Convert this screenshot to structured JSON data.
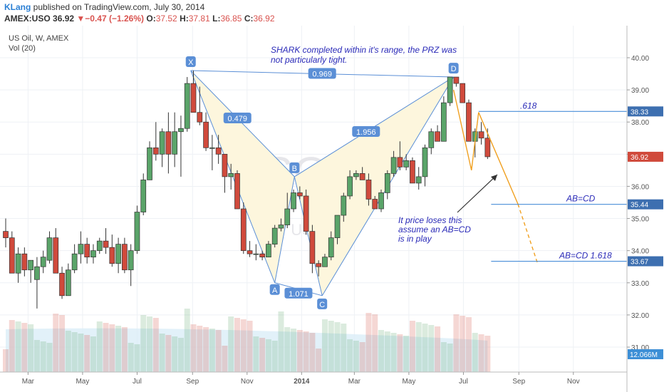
{
  "header": {
    "user": "KLang",
    "published": " published on TradingView.com, July 30, 2014",
    "symbol": "AMEX:USO",
    "last": "36.92",
    "change": "−0.47 (−1.26%)",
    "o_label": "O:",
    "o": "37.52",
    "h_label": "H:",
    "h": "37.81",
    "l_label": "L:",
    "l": "36.85",
    "c_label": "C:",
    "c": "36.92"
  },
  "legend": {
    "series": "US Oil, W, AMEX",
    "volume": "Vol (20)"
  },
  "watermark": {
    "big": "USO, W",
    "small": "US Oil"
  },
  "colors": {
    "up": "#5aa469",
    "down": "#d04a3c",
    "pattern_line": "#5b8fd6",
    "pattern_fill": "#fdf6dd",
    "abcd_line": "#f0a020",
    "annotation_text": "#2a2ab8",
    "level_line": "#4a8ed8",
    "grid": "#eef1f5",
    "axis_text": "#555555"
  },
  "annotations": {
    "shark_note_line1": "SHARK completed within it's range, the PRZ was",
    "shark_note_line2": "not particularly tight.",
    "price_note_line1": "It price loses this",
    "price_note_line2": "assume an AB=CD",
    "price_note_line3": "is in play",
    "fib_618": ".618",
    "abcd": "AB=CD",
    "abcd_1618": "AB=CD 1.618"
  },
  "chart_data": {
    "type": "candlestick",
    "title": "US Oil, W, AMEX",
    "ylim": [
      30.4,
      40.6
    ],
    "y_ticks": [
      31.0,
      32.0,
      33.0,
      34.0,
      35.0,
      36.0,
      37.0,
      38.0,
      39.0,
      40.0
    ],
    "x_ticks": [
      "Mar",
      "May",
      "Jul",
      "Sep",
      "Nov",
      "2014",
      "Mar",
      "May",
      "Jul",
      "Sep",
      "Nov"
    ],
    "x_range": [
      "2013-02-04",
      "2014-12-15"
    ],
    "x_tick_dates": [
      "2013-03-01",
      "2013-05-01",
      "2013-07-01",
      "2013-09-01",
      "2013-11-01",
      "2014-01-01",
      "2014-03-01",
      "2014-05-01",
      "2014-07-01",
      "2014-09-01",
      "2014-11-01"
    ],
    "candle_dates": [
      "2013-02-04",
      "2013-02-11",
      "2013-02-18",
      "2013-02-25",
      "2013-03-04",
      "2013-03-11",
      "2013-03-18",
      "2013-03-25",
      "2013-04-01",
      "2013-04-08",
      "2013-04-15",
      "2013-04-22",
      "2013-04-29",
      "2013-05-06",
      "2013-05-13",
      "2013-05-20",
      "2013-05-27",
      "2013-06-03",
      "2013-06-10",
      "2013-06-17",
      "2013-06-24",
      "2013-07-01",
      "2013-07-08",
      "2013-07-15",
      "2013-07-22",
      "2013-07-29",
      "2013-08-05",
      "2013-08-12",
      "2013-08-19",
      "2013-08-26",
      "2013-09-02",
      "2013-09-09",
      "2013-09-16",
      "2013-09-23",
      "2013-09-30",
      "2013-10-07",
      "2013-10-14",
      "2013-10-21",
      "2013-10-28",
      "2013-11-04",
      "2013-11-11",
      "2013-11-18",
      "2013-11-25",
      "2013-12-02",
      "2013-12-09",
      "2013-12-16",
      "2013-12-23",
      "2013-12-30",
      "2014-01-06",
      "2014-01-13",
      "2014-01-20",
      "2014-01-27",
      "2014-02-03",
      "2014-02-10",
      "2014-02-17",
      "2014-02-24",
      "2014-03-03",
      "2014-03-10",
      "2014-03-17",
      "2014-03-24",
      "2014-03-31",
      "2014-04-07",
      "2014-04-14",
      "2014-04-21",
      "2014-04-28",
      "2014-05-05",
      "2014-05-12",
      "2014-05-19",
      "2014-05-26",
      "2014-06-02",
      "2014-06-09",
      "2014-06-16",
      "2014-06-23",
      "2014-06-30",
      "2014-07-07",
      "2014-07-14",
      "2014-07-21",
      "2014-07-28"
    ],
    "open": [
      34.6,
      34.4,
      33.3,
      33.9,
      33.4,
      33.1,
      33.5,
      33.7,
      34.4,
      33.3,
      32.6,
      33.4,
      33.9,
      34.2,
      33.8,
      34.0,
      34.3,
      34.1,
      33.6,
      34.2,
      33.4,
      34.0,
      35.2,
      36.2,
      37.2,
      37.0,
      37.7,
      37.0,
      37.7,
      37.8,
      39.2,
      38.3,
      38.0,
      37.2,
      37.2,
      37.0,
      36.3,
      36.4,
      35.3,
      34.0,
      33.9,
      33.9,
      33.8,
      34.2,
      34.7,
      34.8,
      35.3,
      35.8,
      35.7,
      34.6,
      33.6,
      33.5,
      33.8,
      34.4,
      35.1,
      35.7,
      36.3,
      36.4,
      36.2,
      35.6,
      35.3,
      35.8,
      36.4,
      36.9,
      36.6,
      36.8,
      36.1,
      36.3,
      37.2,
      37.7,
      37.4,
      38.6,
      39.4,
      39.2,
      38.6,
      37.4,
      37.7,
      37.5
    ],
    "high": [
      35.0,
      34.6,
      34.1,
      34.1,
      33.6,
      33.8,
      34.0,
      34.6,
      34.7,
      33.5,
      33.6,
      34.2,
      34.6,
      34.4,
      34.2,
      34.4,
      34.7,
      34.5,
      34.4,
      34.4,
      34.2,
      35.4,
      36.4,
      37.4,
      38.0,
      37.8,
      38.3,
      38.3,
      38.2,
      39.4,
      39.6,
      39.1,
      38.3,
      37.6,
      37.6,
      37.0,
      36.7,
      36.5,
      35.5,
      34.3,
      34.2,
      34.0,
      34.3,
      34.8,
      35.0,
      35.8,
      35.9,
      36.0,
      35.9,
      34.8,
      33.7,
      33.9,
      34.6,
      35.1,
      35.8,
      36.5,
      36.5,
      36.6,
      36.4,
      35.7,
      35.9,
      36.5,
      37.1,
      37.4,
      37.0,
      36.9,
      36.6,
      37.3,
      37.8,
      37.9,
      38.8,
      39.4,
      39.4,
      39.2,
      38.7,
      37.8,
      38.0,
      37.8
    ],
    "low": [
      34.1,
      33.4,
      33.0,
      33.2,
      33.0,
      32.2,
      33.3,
      33.6,
      33.3,
      32.5,
      32.6,
      33.3,
      33.6,
      33.6,
      33.6,
      33.9,
      33.9,
      33.5,
      33.3,
      33.3,
      32.9,
      33.9,
      35.1,
      36.2,
      36.8,
      36.6,
      36.4,
      36.6,
      36.3,
      37.7,
      38.3,
      37.9,
      37.1,
      36.5,
      36.7,
      35.8,
      35.9,
      35.3,
      33.9,
      33.8,
      33.7,
      33.7,
      33.8,
      34.1,
      34.6,
      34.7,
      35.2,
      35.6,
      34.5,
      33.3,
      33.2,
      33.5,
      33.7,
      34.2,
      34.9,
      35.6,
      36.2,
      36.3,
      35.4,
      35.3,
      35.2,
      35.6,
      36.3,
      36.5,
      36.5,
      36.1,
      35.9,
      36.0,
      37.0,
      37.4,
      37.4,
      38.5,
      39.1,
      38.6,
      37.4,
      36.9,
      37.3,
      36.85
    ],
    "close": [
      34.4,
      33.3,
      33.9,
      33.4,
      33.7,
      33.5,
      33.8,
      34.4,
      33.3,
      32.6,
      33.4,
      33.9,
      34.2,
      33.8,
      34.0,
      34.3,
      34.1,
      33.6,
      34.2,
      33.4,
      34.0,
      35.2,
      36.2,
      37.2,
      37.0,
      37.7,
      37.0,
      37.7,
      37.8,
      39.2,
      38.3,
      38.0,
      37.2,
      37.2,
      37.0,
      36.3,
      36.4,
      35.3,
      34.0,
      33.9,
      33.9,
      33.8,
      34.2,
      34.7,
      34.8,
      35.3,
      35.8,
      35.7,
      34.6,
      33.6,
      33.5,
      33.8,
      34.4,
      35.1,
      35.7,
      36.3,
      36.4,
      36.2,
      35.6,
      35.3,
      35.8,
      36.4,
      36.9,
      36.6,
      36.8,
      36.1,
      36.3,
      37.2,
      37.7,
      37.4,
      38.6,
      39.4,
      39.2,
      38.6,
      37.4,
      37.7,
      37.5,
      36.92
    ],
    "volume_label": "Vol (20)",
    "harmonic_pattern": {
      "points": [
        "X",
        "A",
        "B",
        "C",
        "D"
      ],
      "dates": [
        "2013-08-30",
        "2013-12-02",
        "2013-12-24",
        "2014-01-24",
        "2014-06-20"
      ],
      "prices": [
        39.6,
        33.0,
        36.3,
        32.6,
        39.4
      ],
      "ratios": {
        "XA_XD": "0.969",
        "XB": "0.479",
        "AC": "1.071",
        "BD": "1.956"
      }
    },
    "abcd_projection": {
      "dates": [
        "2014-06-20",
        "2014-07-10",
        "2014-07-18",
        "2014-08-31",
        "2014-09-22"
      ],
      "prices": [
        39.0,
        36.5,
        38.3,
        35.45,
        33.6
      ]
    },
    "levels": [
      {
        "label": ".618",
        "price_label": "38.33",
        "value": 38.33
      },
      {
        "label": "AB=CD",
        "price_label": "35.44",
        "value": 35.44
      },
      {
        "label": "AB=CD 1.618",
        "price_label": "33.67",
        "value": 33.67
      }
    ],
    "last_price_label": "36.92",
    "volume_last_label": "12.066M"
  }
}
